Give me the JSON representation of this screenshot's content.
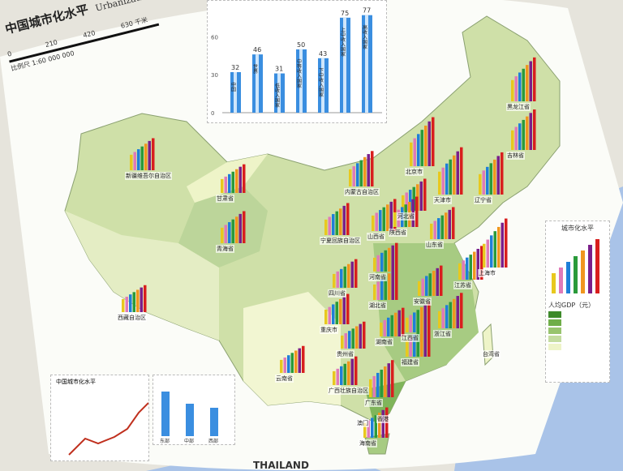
{
  "title": {
    "cn": "中国城市化水平",
    "en": "Urbanization of China"
  },
  "scale": {
    "ticks": [
      "0",
      "210",
      "420",
      "630 千米"
    ],
    "note": "比例尺 1:60 000 000"
  },
  "neighbor_label": "THAILAND",
  "colors": {
    "bars": [
      "#e8c81e",
      "#e07ab8",
      "#1e7fd8",
      "#2a9a3a",
      "#f0961e",
      "#7a1e8a",
      "#d81e1e"
    ],
    "water": "#a9c3e8",
    "land_outside": "#e6e4dc",
    "gdp_levels": [
      "#3d8a2a",
      "#6fae48",
      "#98c46e",
      "#c4dca0",
      "#eef4c8"
    ]
  },
  "top_chart": {
    "type": "bar",
    "yticks": [
      "0",
      "30",
      "60"
    ],
    "categories": [
      "中国",
      "世界",
      "低收入国家",
      "中等收入国家",
      "下中收入国家",
      "上中收入国家",
      "高收入国家"
    ],
    "values": [
      32,
      46,
      31,
      50,
      43,
      75,
      77
    ],
    "ylim": [
      0,
      80
    ]
  },
  "provinces": [
    {
      "name": "新疆维吾尔自治区",
      "level": 0.5
    },
    {
      "name": "甘肃省",
      "level": 0.4
    },
    {
      "name": "青海省",
      "level": 0.5
    },
    {
      "name": "西藏自治区",
      "level": 0.35
    },
    {
      "name": "内蒙古自治区",
      "level": 0.6
    },
    {
      "name": "黑龙江省",
      "level": 0.85
    },
    {
      "name": "吉林省",
      "level": 0.75
    },
    {
      "name": "辽宁省",
      "level": 0.8
    },
    {
      "name": "北京市",
      "level": 1.0
    },
    {
      "name": "天津市",
      "level": 0.95
    },
    {
      "name": "河北省",
      "level": 0.5
    },
    {
      "name": "山西省",
      "level": 0.5
    },
    {
      "name": "宁夏回族自治区",
      "level": 0.5
    },
    {
      "name": "陕西省",
      "level": 0.45
    },
    {
      "name": "山东省",
      "level": 0.5
    },
    {
      "name": "河南省",
      "level": 0.4
    },
    {
      "name": "江苏省",
      "level": 0.55
    },
    {
      "name": "上海市",
      "level": 1.0
    },
    {
      "name": "安徽省",
      "level": 0.45
    },
    {
      "name": "湖北省",
      "level": 0.5
    },
    {
      "name": "四川省",
      "level": 0.4
    },
    {
      "name": "重庆市",
      "level": 0.45
    },
    {
      "name": "贵州省",
      "level": 0.35
    },
    {
      "name": "湖南省",
      "level": 0.4
    },
    {
      "name": "江西省",
      "level": 0.45
    },
    {
      "name": "浙江省",
      "level": 0.6
    },
    {
      "name": "福建省",
      "level": 0.55
    },
    {
      "name": "云南省",
      "level": 0.35
    },
    {
      "name": "广西壮族自治区",
      "level": 0.4
    },
    {
      "name": "广东省",
      "level": 0.65
    },
    {
      "name": "香港",
      "level": 0.0
    },
    {
      "name": "澳门",
      "level": 0.0
    },
    {
      "name": "海南省",
      "level": 0.45
    },
    {
      "name": "台湾省",
      "level": 0.0
    }
  ],
  "legend": {
    "title": "城市化水平",
    "gdp_title": "人均GDP（元）"
  },
  "bottom_left": {
    "title": "中国城市化水平"
  },
  "bottom_mid": {
    "categories": [
      "东部",
      "中部",
      "西部"
    ],
    "values": [
      55,
      40,
      35
    ]
  }
}
